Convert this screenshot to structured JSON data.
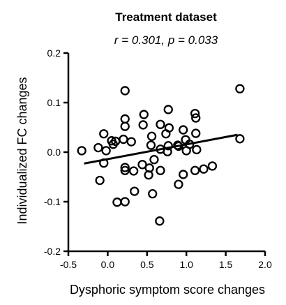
{
  "chart_data": {
    "type": "scatter",
    "title": "Treatment dataset",
    "subtitle": "r = 0.301, p = 0.033",
    "xlabel": "Dysphoric symptom score changes",
    "ylabel": "Individualized FC changes",
    "xlim": [
      -0.5,
      2.0
    ],
    "ylim": [
      -0.2,
      0.2
    ],
    "x_ticks": [
      -0.5,
      0.0,
      0.5,
      1.0,
      1.5,
      2.0
    ],
    "x_tick_labels": [
      "-0.5",
      "0.0",
      "0.5",
      "1.0",
      "1.5",
      "2.0"
    ],
    "y_ticks": [
      -0.2,
      -0.1,
      0.0,
      0.1,
      0.2
    ],
    "y_tick_labels": [
      "-0.2",
      "-0.1",
      "0.0",
      "0.1",
      "0.2"
    ],
    "grid": false,
    "marker": "open-circle",
    "color": "#000000",
    "points": [
      {
        "x": -0.33,
        "y": 0.003
      },
      {
        "x": -0.12,
        "y": 0.009
      },
      {
        "x": -0.05,
        "y": 0.037
      },
      {
        "x": -0.05,
        "y": -0.022
      },
      {
        "x": -0.02,
        "y": 0.003
      },
      {
        "x": 0.05,
        "y": 0.023
      },
      {
        "x": 0.07,
        "y": 0.016
      },
      {
        "x": 0.1,
        "y": 0.022
      },
      {
        "x": -0.1,
        "y": -0.057
      },
      {
        "x": 0.12,
        "y": -0.101
      },
      {
        "x": 0.22,
        "y": -0.1
      },
      {
        "x": 0.22,
        "y": 0.124
      },
      {
        "x": 0.22,
        "y": 0.067
      },
      {
        "x": 0.22,
        "y": 0.052
      },
      {
        "x": 0.2,
        "y": 0.026
      },
      {
        "x": 0.22,
        "y": -0.031
      },
      {
        "x": 0.22,
        "y": -0.037
      },
      {
        "x": 0.3,
        "y": 0.021
      },
      {
        "x": 0.33,
        "y": -0.038
      },
      {
        "x": 0.34,
        "y": -0.079
      },
      {
        "x": 0.44,
        "y": -0.025
      },
      {
        "x": 0.45,
        "y": 0.055
      },
      {
        "x": 0.46,
        "y": 0.076
      },
      {
        "x": 0.52,
        "y": -0.046
      },
      {
        "x": 0.53,
        "y": -0.032
      },
      {
        "x": 0.55,
        "y": 0.014
      },
      {
        "x": 0.56,
        "y": 0.032
      },
      {
        "x": 0.59,
        "y": -0.015
      },
      {
        "x": 0.57,
        "y": -0.084
      },
      {
        "x": 0.67,
        "y": -0.037
      },
      {
        "x": 0.67,
        "y": 0.056
      },
      {
        "x": 0.66,
        "y": -0.139
      },
      {
        "x": 0.67,
        "y": 0.006
      },
      {
        "x": 0.74,
        "y": 0.037
      },
      {
        "x": 0.77,
        "y": 0.086
      },
      {
        "x": 0.78,
        "y": 0.049
      },
      {
        "x": 0.77,
        "y": 0.013
      },
      {
        "x": 0.76,
        "y": 0.001
      },
      {
        "x": 0.89,
        "y": 0.014
      },
      {
        "x": 0.9,
        "y": 0.012
      },
      {
        "x": 0.9,
        "y": -0.065
      },
      {
        "x": 0.96,
        "y": 0.045
      },
      {
        "x": 0.96,
        "y": -0.045
      },
      {
        "x": 0.99,
        "y": 0.025
      },
      {
        "x": 1.0,
        "y": 0.003
      },
      {
        "x": 1.04,
        "y": 0.016
      },
      {
        "x": 1.11,
        "y": 0.078
      },
      {
        "x": 1.12,
        "y": 0.069
      },
      {
        "x": 1.11,
        "y": -0.037
      },
      {
        "x": 1.12,
        "y": 0.038
      },
      {
        "x": 1.13,
        "y": 0.005
      },
      {
        "x": 1.22,
        "y": -0.034
      },
      {
        "x": 1.33,
        "y": -0.028
      },
      {
        "x": 1.68,
        "y": 0.128
      },
      {
        "x": 1.68,
        "y": 0.027
      }
    ],
    "trendline": {
      "x": [
        -0.3,
        1.65
      ],
      "y": [
        -0.023,
        0.035
      ]
    }
  }
}
